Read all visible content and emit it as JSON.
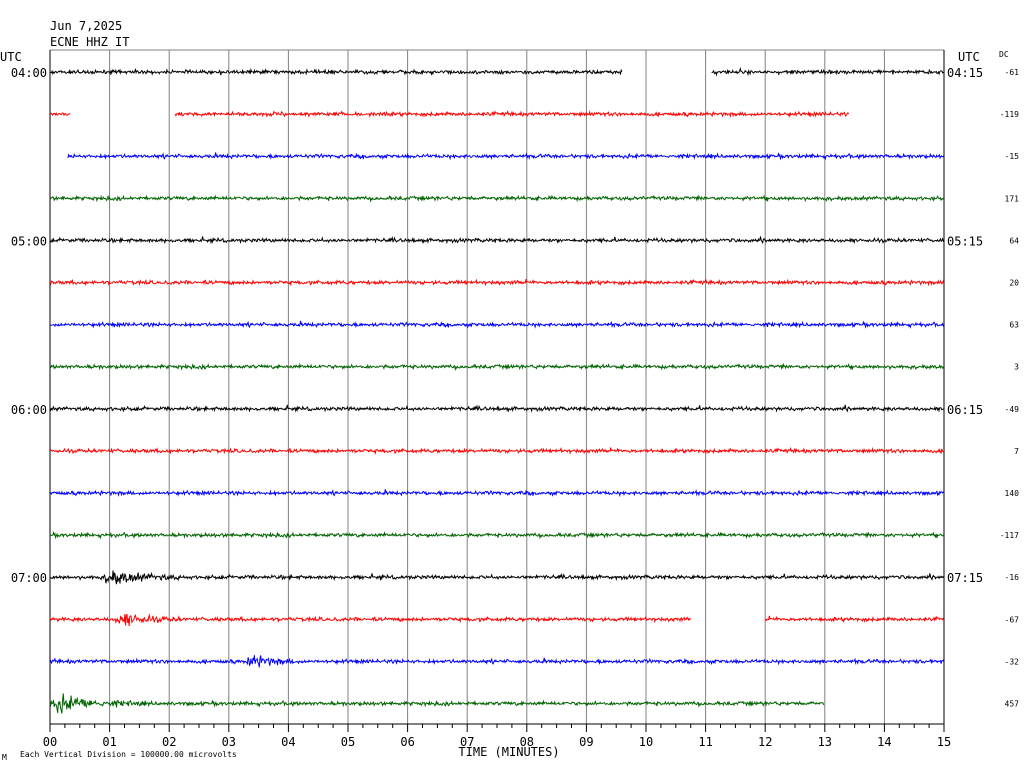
{
  "header": {
    "date": "Jun 7,2025",
    "station": "ECNE HHZ IT",
    "left_tz": "UTC",
    "right_tz": "UTC",
    "dc_header": "DC"
  },
  "footer": {
    "scale_note": "Each Vertical Division = 100000.00 microvolts",
    "corner_mark": "M"
  },
  "colors": {
    "trace_cycle": [
      "#000000",
      "#ff0000",
      "#0000ff",
      "#006400"
    ],
    "grid": "#808080",
    "frame": "#000000"
  },
  "chart_data": {
    "type": "line",
    "title": "",
    "xlabel": "TIME (MINUTES)",
    "ylabel": "",
    "xlim": [
      0,
      15
    ],
    "x_ticks": [
      "00",
      "01",
      "02",
      "03",
      "04",
      "05",
      "06",
      "07",
      "08",
      "09",
      "10",
      "11",
      "12",
      "13",
      "14",
      "15"
    ],
    "row_minutes": 15,
    "left_time_labels": [
      {
        "row": 0,
        "label": "04:00"
      },
      {
        "row": 4,
        "label": "05:00"
      },
      {
        "row": 8,
        "label": "06:00"
      },
      {
        "row": 12,
        "label": "07:00"
      }
    ],
    "right_time_labels": [
      {
        "row": 0,
        "label": "04:15"
      },
      {
        "row": 4,
        "label": "05:15"
      },
      {
        "row": 8,
        "label": "06:15"
      },
      {
        "row": 12,
        "label": "07:15"
      }
    ],
    "series": [
      {
        "row": 0,
        "dc": "-61",
        "segments": [
          [
            0,
            9.6
          ],
          [
            11.1,
            15
          ]
        ],
        "events": []
      },
      {
        "row": 1,
        "dc": "-119",
        "segments": [
          [
            0,
            0.35
          ],
          [
            2.1,
            13.4
          ]
        ],
        "events": []
      },
      {
        "row": 2,
        "dc": "-15",
        "segments": [
          [
            0.3,
            15
          ]
        ],
        "events": []
      },
      {
        "row": 3,
        "dc": "171",
        "segments": [
          [
            0,
            15
          ]
        ],
        "events": []
      },
      {
        "row": 4,
        "dc": "64",
        "segments": [
          [
            0,
            15
          ]
        ],
        "events": []
      },
      {
        "row": 5,
        "dc": "20",
        "segments": [
          [
            0,
            15
          ]
        ],
        "events": []
      },
      {
        "row": 6,
        "dc": "63",
        "segments": [
          [
            0,
            15
          ]
        ],
        "events": []
      },
      {
        "row": 7,
        "dc": "3",
        "segments": [
          [
            0,
            15
          ]
        ],
        "events": []
      },
      {
        "row": 8,
        "dc": "-49",
        "segments": [
          [
            0,
            15
          ]
        ],
        "events": []
      },
      {
        "row": 9,
        "dc": "7",
        "segments": [
          [
            0,
            15
          ]
        ],
        "events": []
      },
      {
        "row": 10,
        "dc": "140",
        "segments": [
          [
            0,
            15
          ]
        ],
        "events": []
      },
      {
        "row": 11,
        "dc": "-117",
        "segments": [
          [
            0,
            15
          ]
        ],
        "events": []
      },
      {
        "row": 12,
        "dc": "-16",
        "segments": [
          [
            0,
            15
          ]
        ],
        "events": [
          {
            "start": 0.9,
            "end": 2.3,
            "amp": 2.6
          }
        ]
      },
      {
        "row": 13,
        "dc": "-67",
        "segments": [
          [
            0,
            10.75
          ],
          [
            12.0,
            15
          ]
        ],
        "events": [
          {
            "start": 1.1,
            "end": 2.2,
            "amp": 2.4
          }
        ]
      },
      {
        "row": 14,
        "dc": "-32",
        "segments": [
          [
            0,
            15
          ]
        ],
        "events": [
          {
            "start": 3.3,
            "end": 4.2,
            "amp": 2.2
          }
        ]
      },
      {
        "row": 15,
        "dc": "457",
        "segments": [
          [
            0,
            13.0
          ]
        ],
        "events": [
          {
            "start": 0.0,
            "end": 1.6,
            "amp": 3.0
          }
        ]
      }
    ]
  }
}
